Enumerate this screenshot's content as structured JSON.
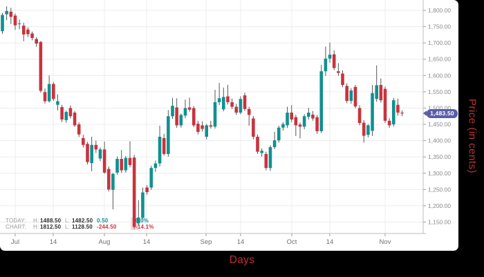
{
  "price_badge": {
    "text": "1,483.50",
    "color": "#5a5ea8"
  },
  "axes": {
    "y_label": "Price (in cents)",
    "x_label": "Days",
    "label_color": "#bb3333"
  },
  "status_bar": {
    "rows": [
      {
        "label": "TODAY:",
        "h_label": "H:",
        "high": "1488.50",
        "l_label": "L:",
        "low": "1482.50",
        "change": "0.50",
        "percent": "0.0%",
        "color": "#0f9191"
      },
      {
        "label": "CHART:",
        "h_label": "H:",
        "high": "1812.50",
        "l_label": "L:",
        "low": "1128.50",
        "change": "-244.50",
        "percent": "-14.1%",
        "color": "#c8333e"
      }
    ]
  },
  "chart_data": {
    "type": "candlestick",
    "title": "",
    "xlabel": "Days",
    "ylabel": "Price (in cents)",
    "legend": false,
    "grid": true,
    "ylim": [
      1115,
      1830
    ],
    "last_price": 1483.5,
    "today": {
      "high": 1488.5,
      "low": 1482.5,
      "change": 0.5,
      "change_pct": "0.0%"
    },
    "chart": {
      "high": 1812.5,
      "low": 1128.5,
      "change": -244.5,
      "change_pct": "-14.1%"
    },
    "up_color": "#0f9191",
    "down_color": "#c8333e",
    "x_ticks": [
      "Jul",
      "14",
      "Aug",
      "14",
      "Sep",
      "14",
      "Oct",
      "14",
      "Nov"
    ],
    "y_ticks": [
      {
        "value": 1800,
        "label": "1,800.00"
      },
      {
        "value": 1750,
        "label": "1,750.00"
      },
      {
        "value": 1700,
        "label": "1,700.00"
      },
      {
        "value": 1650,
        "label": "1,650.00"
      },
      {
        "value": 1600,
        "label": "1,600.00"
      },
      {
        "value": 1550,
        "label": "1,550.00"
      },
      {
        "value": 1500,
        "label": "1,500.00"
      },
      {
        "value": 1450,
        "label": "1,450.00"
      },
      {
        "value": 1400,
        "label": "1,400.00"
      },
      {
        "value": 1350,
        "label": "1,350.00"
      },
      {
        "value": 1300,
        "label": "1,300.00"
      },
      {
        "value": 1250,
        "label": "1,250.00"
      },
      {
        "value": 1200,
        "label": "1,200.00"
      },
      {
        "value": 1150,
        "label": "1,150.00"
      }
    ],
    "candles": [
      [
        1736,
        1792,
        1728,
        1786
      ],
      [
        1788,
        1812.5,
        1770,
        1798
      ],
      [
        1796,
        1808,
        1758,
        1780
      ],
      [
        1784,
        1790,
        1740,
        1754
      ],
      [
        1759,
        1772,
        1742,
        1760
      ],
      [
        1753,
        1762,
        1705,
        1726
      ],
      [
        1741,
        1748,
        1718,
        1727
      ],
      [
        1729,
        1735,
        1708,
        1715
      ],
      [
        1712,
        1718,
        1688,
        1698
      ],
      [
        1703,
        1706,
        1548,
        1553
      ],
      [
        1549,
        1560,
        1514,
        1521
      ],
      [
        1521,
        1600,
        1517,
        1574
      ],
      [
        1574,
        1580,
        1522,
        1528
      ],
      [
        1510,
        1542,
        1493,
        1521
      ],
      [
        1503,
        1510,
        1457,
        1465
      ],
      [
        1463,
        1492,
        1455,
        1488
      ],
      [
        1500,
        1508,
        1468,
        1475
      ],
      [
        1486,
        1491,
        1442,
        1447
      ],
      [
        1450,
        1456,
        1411,
        1419
      ],
      [
        1408,
        1418,
        1379,
        1387
      ],
      [
        1390,
        1396,
        1327,
        1334
      ],
      [
        1331,
        1412,
        1306,
        1387
      ],
      [
        1387,
        1400,
        1362,
        1373
      ],
      [
        1345,
        1379,
        1337,
        1373
      ],
      [
        1373,
        1397,
        1298,
        1302
      ],
      [
        1313,
        1321,
        1244,
        1250
      ],
      [
        1249,
        1301,
        1189,
        1298
      ],
      [
        1302,
        1351,
        1295,
        1344
      ],
      [
        1344,
        1371,
        1301,
        1309
      ],
      [
        1309,
        1353,
        1302,
        1347
      ],
      [
        1347,
        1398,
        1318,
        1325
      ],
      [
        1348,
        1356,
        1128.5,
        1135
      ],
      [
        1146,
        1217,
        1139,
        1164
      ],
      [
        1163,
        1256,
        1150,
        1241
      ],
      [
        1256,
        1263,
        1234,
        1242
      ],
      [
        1256,
        1323,
        1249,
        1316
      ],
      [
        1316,
        1339,
        1304,
        1330
      ],
      [
        1330,
        1446,
        1321,
        1412
      ],
      [
        1408,
        1421,
        1354,
        1359
      ],
      [
        1359,
        1494,
        1351,
        1475
      ],
      [
        1475,
        1531,
        1467,
        1507
      ],
      [
        1502,
        1530,
        1439,
        1447
      ],
      [
        1447,
        1483,
        1440,
        1479
      ],
      [
        1477,
        1526,
        1469,
        1500
      ],
      [
        1502,
        1532,
        1489,
        1495
      ],
      [
        1500,
        1506,
        1441,
        1447
      ],
      [
        1452,
        1461,
        1419,
        1427
      ],
      [
        1447,
        1459,
        1428,
        1436
      ],
      [
        1412,
        1451,
        1404,
        1447
      ],
      [
        1447,
        1461,
        1437,
        1443
      ],
      [
        1443,
        1556,
        1437,
        1518
      ],
      [
        1518,
        1577,
        1509,
        1530
      ],
      [
        1496,
        1563,
        1490,
        1534
      ],
      [
        1536,
        1571,
        1511,
        1518
      ],
      [
        1518,
        1529,
        1497,
        1504
      ],
      [
        1504,
        1513,
        1479,
        1486
      ],
      [
        1486,
        1536,
        1481,
        1528
      ],
      [
        1539,
        1547,
        1491,
        1497
      ],
      [
        1497,
        1504,
        1446,
        1479
      ],
      [
        1468,
        1476,
        1404,
        1412
      ],
      [
        1412,
        1419,
        1359,
        1366
      ],
      [
        1362,
        1376,
        1351,
        1369
      ],
      [
        1359,
        1366,
        1309,
        1316
      ],
      [
        1316,
        1386,
        1307,
        1380
      ],
      [
        1380,
        1427,
        1374,
        1401
      ],
      [
        1401,
        1446,
        1394,
        1440
      ],
      [
        1440,
        1457,
        1431,
        1451
      ],
      [
        1447,
        1504,
        1439,
        1486
      ],
      [
        1486,
        1509,
        1457,
        1465
      ],
      [
        1472,
        1479,
        1414,
        1447
      ],
      [
        1449,
        1456,
        1407,
        1443
      ],
      [
        1443,
        1481,
        1435,
        1475
      ],
      [
        1473,
        1501,
        1465,
        1486
      ],
      [
        1480,
        1491,
        1461,
        1468
      ],
      [
        1472,
        1479,
        1421,
        1429
      ],
      [
        1429,
        1633,
        1423,
        1613
      ],
      [
        1613,
        1689,
        1599,
        1652
      ],
      [
        1652,
        1701,
        1639,
        1664
      ],
      [
        1665,
        1677,
        1617,
        1623
      ],
      [
        1613,
        1638,
        1599,
        1608
      ],
      [
        1606,
        1616,
        1564,
        1571
      ],
      [
        1568,
        1576,
        1515,
        1522
      ],
      [
        1522,
        1561,
        1513,
        1554
      ],
      [
        1565,
        1571,
        1499,
        1505
      ],
      [
        1500,
        1509,
        1447,
        1454
      ],
      [
        1455,
        1463,
        1394,
        1415
      ],
      [
        1418,
        1451,
        1410,
        1447
      ],
      [
        1430,
        1571,
        1414,
        1546
      ],
      [
        1528,
        1631,
        1519,
        1570
      ],
      [
        1571,
        1591,
        1517,
        1524
      ],
      [
        1559,
        1566,
        1454,
        1461
      ],
      [
        1461,
        1469,
        1439,
        1447
      ],
      [
        1450,
        1531,
        1443,
        1524
      ],
      [
        1510,
        1529,
        1477,
        1486
      ],
      [
        1486,
        1493,
        1475,
        1483.5
      ]
    ]
  }
}
